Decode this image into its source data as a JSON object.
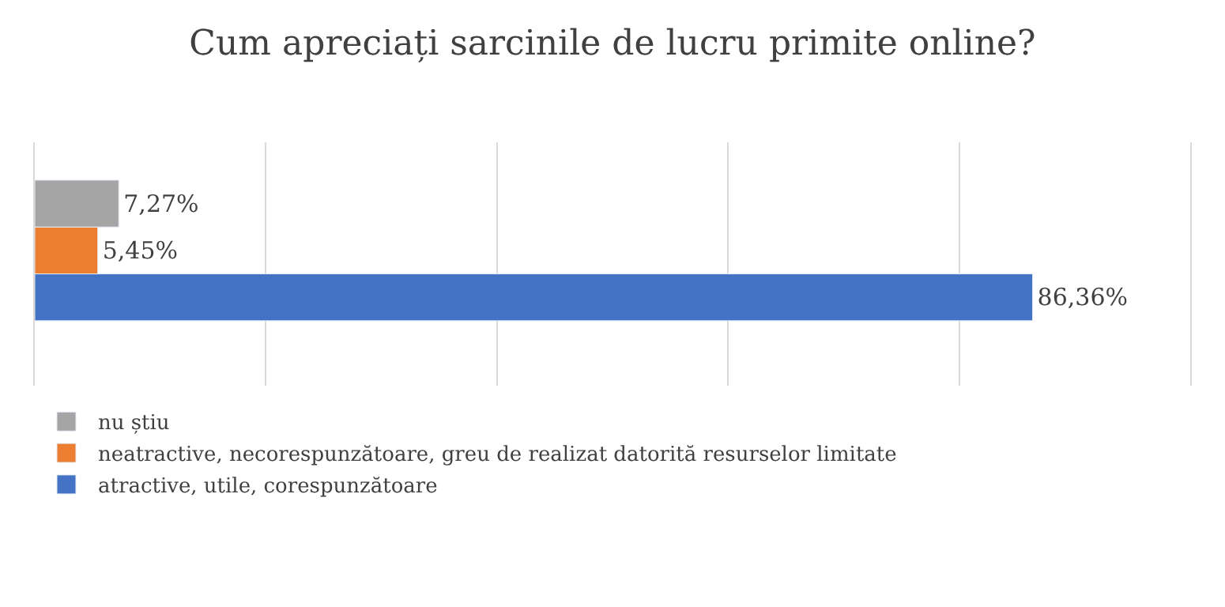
{
  "chart_data": {
    "type": "bar",
    "orientation": "horizontal",
    "title": "Cum apreciați sarcinile de lucru primite online?",
    "categories": [
      null
    ],
    "series": [
      {
        "name": "nu știu",
        "color": "#a5a5a5",
        "values": [
          7.27
        ],
        "value_labels": [
          "7,27%"
        ]
      },
      {
        "name": "neatractive, necorespunzătoare, greu de realizat datorită resurselor limitate",
        "color": "#ed7d31",
        "values": [
          5.45
        ],
        "value_labels": [
          "5,45%"
        ]
      },
      {
        "name": "atractive, utile, corespunzătoare",
        "color": "#4472c4",
        "values": [
          86.36
        ],
        "value_labels": [
          "86,36%"
        ]
      }
    ],
    "xlim": [
      0,
      100
    ],
    "xticks": [
      {
        "value": 0,
        "label": null
      },
      {
        "value": 20,
        "label": null
      },
      {
        "value": 40,
        "label": null
      },
      {
        "value": 60,
        "label": null
      },
      {
        "value": 80,
        "label": null
      },
      {
        "value": 100,
        "label": null
      }
    ],
    "grid": "x",
    "legend": "bottom"
  }
}
